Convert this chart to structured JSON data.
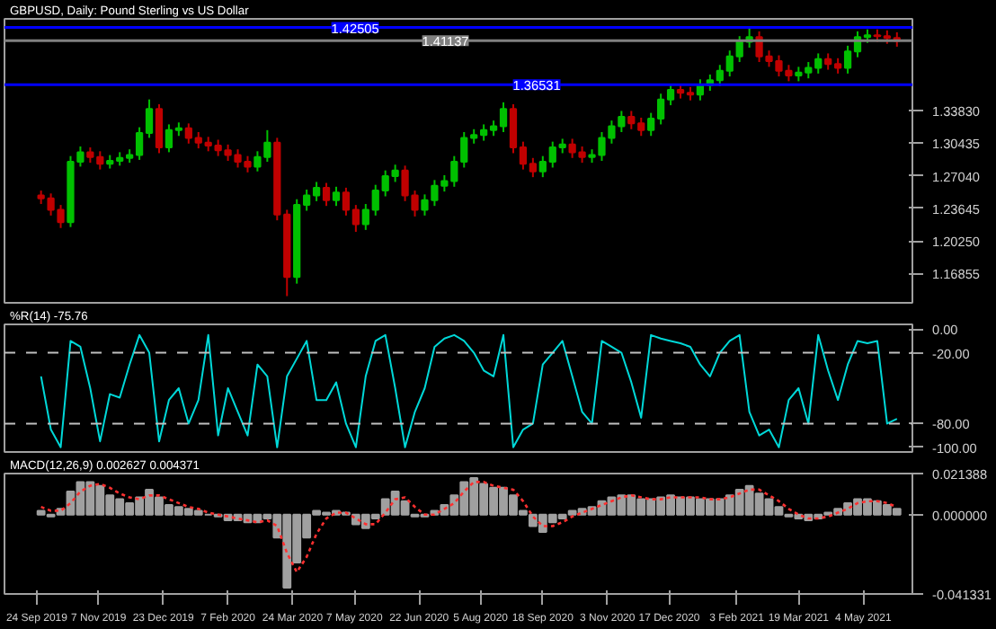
{
  "chart_data": [
    {
      "type": "candlestick",
      "title": "GBPUSD, Daily: Pound Sterling vs US Dollar",
      "x": [
        "2019-09-27",
        "2019-10-04",
        "2019-10-11",
        "2019-10-18",
        "2019-10-25",
        "2019-11-01",
        "2019-11-08",
        "2019-11-15",
        "2019-11-22",
        "2019-11-29",
        "2019-12-06",
        "2019-12-13",
        "2019-12-20",
        "2019-12-27",
        "2020-01-03",
        "2020-01-10",
        "2020-01-17",
        "2020-01-24",
        "2020-01-31",
        "2020-02-07",
        "2020-02-14",
        "2020-02-21",
        "2020-02-28",
        "2020-03-06",
        "2020-03-13",
        "2020-03-20",
        "2020-03-27",
        "2020-04-03",
        "2020-04-10",
        "2020-04-17",
        "2020-04-24",
        "2020-05-01",
        "2020-05-08",
        "2020-05-15",
        "2020-05-22",
        "2020-05-29",
        "2020-06-05",
        "2020-06-12",
        "2020-06-19",
        "2020-06-26",
        "2020-07-03",
        "2020-07-10",
        "2020-07-17",
        "2020-07-24",
        "2020-07-31",
        "2020-08-07",
        "2020-08-14",
        "2020-08-21",
        "2020-08-28",
        "2020-09-04",
        "2020-09-11",
        "2020-09-18",
        "2020-09-25",
        "2020-10-02",
        "2020-10-09",
        "2020-10-16",
        "2020-10-23",
        "2020-10-30",
        "2020-11-06",
        "2020-11-13",
        "2020-11-20",
        "2020-11-27",
        "2020-12-04",
        "2020-12-11",
        "2020-12-18",
        "2020-12-25",
        "2021-01-01",
        "2021-01-08",
        "2021-01-15",
        "2021-01-22",
        "2021-01-29",
        "2021-02-05",
        "2021-02-12",
        "2021-02-19",
        "2021-02-26",
        "2021-03-05",
        "2021-03-12",
        "2021-03-19",
        "2021-03-26",
        "2021-04-02",
        "2021-04-09",
        "2021-04-16",
        "2021-04-23",
        "2021-04-30",
        "2021-05-07",
        "2021-05-14",
        "2021-05-21",
        "2021-05-28"
      ],
      "ohlc": [
        [
          1.25,
          1.255,
          1.241,
          1.247
        ],
        [
          1.247,
          1.252,
          1.229,
          1.235
        ],
        [
          1.235,
          1.24,
          1.216,
          1.222
        ],
        [
          1.222,
          1.291,
          1.217,
          1.285
        ],
        [
          1.285,
          1.301,
          1.28,
          1.295
        ],
        [
          1.295,
          1.3,
          1.284,
          1.29
        ],
        [
          1.29,
          1.296,
          1.277,
          1.283
        ],
        [
          1.283,
          1.292,
          1.278,
          1.286
        ],
        [
          1.286,
          1.295,
          1.281,
          1.289
        ],
        [
          1.289,
          1.298,
          1.284,
          1.292
        ],
        [
          1.292,
          1.321,
          1.287,
          1.315
        ],
        [
          1.315,
          1.35,
          1.31,
          1.34
        ],
        [
          1.34,
          1.345,
          1.294,
          1.3
        ],
        [
          1.3,
          1.324,
          1.295,
          1.318
        ],
        [
          1.318,
          1.326,
          1.312,
          1.32
        ],
        [
          1.32,
          1.325,
          1.304,
          1.31
        ],
        [
          1.31,
          1.316,
          1.299,
          1.305
        ],
        [
          1.305,
          1.311,
          1.296,
          1.302
        ],
        [
          1.302,
          1.308,
          1.291,
          1.297
        ],
        [
          1.297,
          1.303,
          1.286,
          1.292
        ],
        [
          1.292,
          1.298,
          1.279,
          1.285
        ],
        [
          1.285,
          1.291,
          1.274,
          1.28
        ],
        [
          1.28,
          1.296,
          1.275,
          1.29
        ],
        [
          1.29,
          1.318,
          1.285,
          1.305
        ],
        [
          1.305,
          1.31,
          1.224,
          1.23
        ],
        [
          1.23,
          1.235,
          1.145,
          1.165
        ],
        [
          1.165,
          1.246,
          1.158,
          1.24
        ],
        [
          1.24,
          1.256,
          1.234,
          1.25
        ],
        [
          1.25,
          1.264,
          1.244,
          1.258
        ],
        [
          1.258,
          1.263,
          1.239,
          1.245
        ],
        [
          1.245,
          1.259,
          1.239,
          1.253
        ],
        [
          1.253,
          1.258,
          1.229,
          1.235
        ],
        [
          1.235,
          1.24,
          1.212,
          1.22
        ],
        [
          1.22,
          1.241,
          1.214,
          1.235
        ],
        [
          1.235,
          1.261,
          1.229,
          1.255
        ],
        [
          1.255,
          1.276,
          1.249,
          1.27
        ],
        [
          1.27,
          1.282,
          1.264,
          1.276
        ],
        [
          1.276,
          1.281,
          1.244,
          1.25
        ],
        [
          1.25,
          1.255,
          1.228,
          1.235
        ],
        [
          1.235,
          1.251,
          1.229,
          1.245
        ],
        [
          1.245,
          1.266,
          1.239,
          1.26
        ],
        [
          1.26,
          1.271,
          1.254,
          1.265
        ],
        [
          1.265,
          1.291,
          1.259,
          1.285
        ],
        [
          1.285,
          1.316,
          1.279,
          1.31
        ],
        [
          1.31,
          1.319,
          1.304,
          1.313
        ],
        [
          1.313,
          1.324,
          1.307,
          1.318
        ],
        [
          1.318,
          1.328,
          1.312,
          1.322
        ],
        [
          1.322,
          1.347,
          1.316,
          1.34
        ],
        [
          1.34,
          1.345,
          1.294,
          1.3
        ],
        [
          1.3,
          1.306,
          1.277,
          1.283
        ],
        [
          1.283,
          1.289,
          1.269,
          1.275
        ],
        [
          1.275,
          1.291,
          1.269,
          1.285
        ],
        [
          1.285,
          1.306,
          1.279,
          1.3
        ],
        [
          1.3,
          1.309,
          1.294,
          1.303
        ],
        [
          1.303,
          1.309,
          1.289,
          1.295
        ],
        [
          1.295,
          1.301,
          1.284,
          1.29
        ],
        [
          1.29,
          1.298,
          1.284,
          1.292
        ],
        [
          1.292,
          1.316,
          1.286,
          1.31
        ],
        [
          1.31,
          1.328,
          1.304,
          1.322
        ],
        [
          1.322,
          1.338,
          1.316,
          1.332
        ],
        [
          1.332,
          1.338,
          1.319,
          1.325
        ],
        [
          1.325,
          1.331,
          1.312,
          1.318
        ],
        [
          1.318,
          1.336,
          1.312,
          1.33
        ],
        [
          1.33,
          1.356,
          1.324,
          1.35
        ],
        [
          1.35,
          1.366,
          1.344,
          1.36
        ],
        [
          1.36,
          1.366,
          1.351,
          1.357
        ],
        [
          1.357,
          1.363,
          1.349,
          1.355
        ],
        [
          1.355,
          1.371,
          1.349,
          1.365
        ],
        [
          1.365,
          1.376,
          1.359,
          1.37
        ],
        [
          1.37,
          1.386,
          1.364,
          1.38
        ],
        [
          1.38,
          1.401,
          1.374,
          1.395
        ],
        [
          1.395,
          1.416,
          1.389,
          1.41
        ],
        [
          1.41,
          1.424,
          1.404,
          1.415
        ],
        [
          1.415,
          1.421,
          1.389,
          1.395
        ],
        [
          1.395,
          1.401,
          1.384,
          1.39
        ],
        [
          1.39,
          1.396,
          1.374,
          1.38
        ],
        [
          1.38,
          1.386,
          1.369,
          1.375
        ],
        [
          1.375,
          1.384,
          1.369,
          1.378
        ],
        [
          1.378,
          1.389,
          1.372,
          1.383
        ],
        [
          1.383,
          1.398,
          1.377,
          1.392
        ],
        [
          1.392,
          1.398,
          1.381,
          1.387
        ],
        [
          1.387,
          1.393,
          1.377,
          1.383
        ],
        [
          1.383,
          1.406,
          1.377,
          1.4
        ],
        [
          1.4,
          1.421,
          1.394,
          1.415
        ],
        [
          1.415,
          1.423,
          1.409,
          1.417
        ],
        [
          1.417,
          1.423,
          1.41,
          1.416
        ],
        [
          1.416,
          1.422,
          1.408,
          1.414
        ],
        [
          1.414,
          1.42,
          1.405,
          1.411
        ]
      ],
      "xlim": [
        "2019-09-01",
        "2021-06-08"
      ],
      "ylim": [
        1.138,
        1.434
      ],
      "yticks": [
        {
          "value": 1.16855,
          "label": "1.16855"
        },
        {
          "value": 1.2025,
          "label": "1.20250"
        },
        {
          "value": 1.23645,
          "label": "1.23645"
        },
        {
          "value": 1.2704,
          "label": "1.27040"
        },
        {
          "value": 1.30435,
          "label": "1.30435"
        },
        {
          "value": 1.3383,
          "label": "1.33830"
        }
      ],
      "ref_lines": [
        {
          "axis": "y",
          "value": 1.42505,
          "label": "1.42505",
          "color": "#0000ff"
        },
        {
          "axis": "y",
          "value": 1.41137,
          "label": "1.41137",
          "color": "#808080"
        },
        {
          "axis": "y",
          "value": 1.36531,
          "label": "1.36531",
          "color": "#0000ff"
        }
      ],
      "tick_labels": "y"
    },
    {
      "type": "line",
      "title": "%R(14) -75.76",
      "x": [
        "2019-09-27",
        "2019-10-04",
        "2019-10-11",
        "2019-10-18",
        "2019-10-25",
        "2019-11-01",
        "2019-11-08",
        "2019-11-15",
        "2019-11-22",
        "2019-11-29",
        "2019-12-06",
        "2019-12-13",
        "2019-12-20",
        "2019-12-27",
        "2020-01-03",
        "2020-01-10",
        "2020-01-17",
        "2020-01-24",
        "2020-01-31",
        "2020-02-07",
        "2020-02-14",
        "2020-02-21",
        "2020-02-28",
        "2020-03-06",
        "2020-03-13",
        "2020-03-20",
        "2020-03-27",
        "2020-04-03",
        "2020-04-10",
        "2020-04-17",
        "2020-04-24",
        "2020-05-01",
        "2020-05-08",
        "2020-05-15",
        "2020-05-22",
        "2020-05-29",
        "2020-06-05",
        "2020-06-12",
        "2020-06-19",
        "2020-06-26",
        "2020-07-03",
        "2020-07-10",
        "2020-07-17",
        "2020-07-24",
        "2020-07-31",
        "2020-08-07",
        "2020-08-14",
        "2020-08-21",
        "2020-08-28",
        "2020-09-04",
        "2020-09-11",
        "2020-09-18",
        "2020-09-25",
        "2020-10-02",
        "2020-10-09",
        "2020-10-16",
        "2020-10-23",
        "2020-10-30",
        "2020-11-06",
        "2020-11-13",
        "2020-11-20",
        "2020-11-27",
        "2020-12-04",
        "2020-12-11",
        "2020-12-18",
        "2020-12-25",
        "2021-01-01",
        "2021-01-08",
        "2021-01-15",
        "2021-01-22",
        "2021-01-29",
        "2021-02-05",
        "2021-02-12",
        "2021-02-19",
        "2021-02-26",
        "2021-03-05",
        "2021-03-12",
        "2021-03-19",
        "2021-03-26",
        "2021-04-02",
        "2021-04-09",
        "2021-04-16",
        "2021-04-23",
        "2021-04-30",
        "2021-05-07",
        "2021-05-14",
        "2021-05-21",
        "2021-05-28"
      ],
      "series": [
        {
          "color": "#00d8d8",
          "values": [
            -40,
            -85,
            -100,
            -10,
            -15,
            -50,
            -95,
            -55,
            -58,
            -30,
            -5,
            -20,
            -95,
            -60,
            -50,
            -80,
            -60,
            -5,
            -90,
            -50,
            -70,
            -90,
            -30,
            -40,
            -100,
            -40,
            -25,
            -10,
            -60,
            -60,
            -45,
            -80,
            -100,
            -40,
            -10,
            -5,
            -50,
            -100,
            -70,
            -50,
            -15,
            -8,
            -5,
            -10,
            -20,
            -35,
            -40,
            -5,
            -100,
            -85,
            -80,
            -30,
            -20,
            -10,
            -40,
            -70,
            -80,
            -10,
            -15,
            -20,
            -45,
            -75,
            -5,
            -8,
            -10,
            -12,
            -15,
            -30,
            -40,
            -20,
            -10,
            -5,
            -70,
            -90,
            -85,
            -100,
            -60,
            -50,
            -80,
            -5,
            -35,
            -60,
            -30,
            -10,
            -12,
            -10,
            -80,
            -76
          ]
        }
      ],
      "xlim": [
        "2019-09-01",
        "2021-06-08"
      ],
      "ylim": [
        -104,
        4
      ],
      "yticks": [
        {
          "value": 0,
          "label": "0.00"
        },
        {
          "value": -20,
          "label": "-20.00"
        },
        {
          "value": -80,
          "label": "-80.00"
        },
        {
          "value": -100,
          "label": "-100.00"
        }
      ],
      "ref_lines": [
        {
          "axis": "y",
          "value": -20,
          "color": "#c0c0c0",
          "line_style": "dashed"
        },
        {
          "axis": "y",
          "value": -80,
          "color": "#c0c0c0",
          "line_style": "dashed"
        }
      ],
      "tick_labels": "y"
    },
    {
      "type": "bar",
      "title": "MACD(12,26,9) 0.002627 0.004371",
      "x": [
        "2019-09-27",
        "2019-10-04",
        "2019-10-11",
        "2019-10-18",
        "2019-10-25",
        "2019-11-01",
        "2019-11-08",
        "2019-11-15",
        "2019-11-22",
        "2019-11-29",
        "2019-12-06",
        "2019-12-13",
        "2019-12-20",
        "2019-12-27",
        "2020-01-03",
        "2020-01-10",
        "2020-01-17",
        "2020-01-24",
        "2020-01-31",
        "2020-02-07",
        "2020-02-14",
        "2020-02-21",
        "2020-02-28",
        "2020-03-06",
        "2020-03-13",
        "2020-03-20",
        "2020-03-27",
        "2020-04-03",
        "2020-04-10",
        "2020-04-17",
        "2020-04-24",
        "2020-05-01",
        "2020-05-08",
        "2020-05-15",
        "2020-05-22",
        "2020-05-29",
        "2020-06-05",
        "2020-06-12",
        "2020-06-19",
        "2020-06-26",
        "2020-07-03",
        "2020-07-10",
        "2020-07-17",
        "2020-07-24",
        "2020-07-31",
        "2020-08-07",
        "2020-08-14",
        "2020-08-21",
        "2020-08-28",
        "2020-09-04",
        "2020-09-11",
        "2020-09-18",
        "2020-09-25",
        "2020-10-02",
        "2020-10-09",
        "2020-10-16",
        "2020-10-23",
        "2020-10-30",
        "2020-11-06",
        "2020-11-13",
        "2020-11-20",
        "2020-11-27",
        "2020-12-04",
        "2020-12-11",
        "2020-12-18",
        "2020-12-25",
        "2021-01-01",
        "2021-01-08",
        "2021-01-15",
        "2021-01-22",
        "2021-01-29",
        "2021-02-05",
        "2021-02-12",
        "2021-02-19",
        "2021-02-26",
        "2021-03-05",
        "2021-03-12",
        "2021-03-19",
        "2021-03-26",
        "2021-04-02",
        "2021-04-09",
        "2021-04-16",
        "2021-04-23",
        "2021-04-30",
        "2021-05-07",
        "2021-05-14",
        "2021-05-21",
        "2021-05-28"
      ],
      "series": [
        {
          "type": "bar",
          "color": "#a0a0a0",
          "values": [
            0.002,
            -0.001,
            0.003,
            0.012,
            0.017,
            0.017,
            0.015,
            0.01,
            0.008,
            0.006,
            0.009,
            0.013,
            0.009,
            0.005,
            0.004,
            0.003,
            0.002,
            0.0,
            -0.001,
            -0.003,
            -0.003,
            -0.004,
            -0.004,
            -0.002,
            -0.012,
            -0.038,
            -0.025,
            -0.012,
            0.002,
            0.001,
            0.002,
            0.001,
            -0.005,
            -0.007,
            -0.002,
            0.008,
            0.012,
            0.007,
            -0.001,
            -0.001,
            0.002,
            0.005,
            0.01,
            0.017,
            0.019,
            0.016,
            0.014,
            0.014,
            0.01,
            0.002,
            -0.006,
            -0.009,
            -0.004,
            -0.002,
            0.002,
            0.003,
            0.004,
            0.007,
            0.009,
            0.01,
            0.01,
            0.008,
            0.008,
            0.009,
            0.01,
            0.009,
            0.009,
            0.008,
            0.008,
            0.008,
            0.01,
            0.013,
            0.015,
            0.011,
            0.008,
            0.004,
            -0.001,
            -0.002,
            -0.003,
            -0.002,
            0.001,
            0.003,
            0.006,
            0.008,
            0.008,
            0.007,
            0.005,
            0.003
          ]
        },
        {
          "type": "line",
          "color": "#ff3030",
          "line_style": "dotted",
          "values": [
            0.004,
            0.002,
            0.002,
            0.006,
            0.012,
            0.015,
            0.016,
            0.014,
            0.011,
            0.009,
            0.008,
            0.01,
            0.01,
            0.008,
            0.006,
            0.004,
            0.003,
            0.001,
            0.0,
            -0.001,
            -0.002,
            -0.003,
            -0.004,
            -0.003,
            -0.006,
            -0.02,
            -0.03,
            -0.022,
            -0.01,
            -0.002,
            0.001,
            0.001,
            -0.002,
            -0.005,
            -0.005,
            0.001,
            0.008,
            0.009,
            0.004,
            0.0,
            0.0,
            0.003,
            0.006,
            0.012,
            0.017,
            0.017,
            0.015,
            0.014,
            0.013,
            0.007,
            -0.001,
            -0.006,
            -0.006,
            -0.004,
            -0.001,
            0.001,
            0.003,
            0.005,
            0.007,
            0.009,
            0.01,
            0.009,
            0.008,
            0.008,
            0.009,
            0.009,
            0.009,
            0.009,
            0.008,
            0.008,
            0.009,
            0.011,
            0.013,
            0.013,
            0.01,
            0.007,
            0.003,
            0.0,
            -0.002,
            -0.002,
            -0.001,
            0.001,
            0.003,
            0.006,
            0.007,
            0.007,
            0.006,
            0.004
          ]
        }
      ],
      "xlim": [
        "2019-09-01",
        "2021-06-08"
      ],
      "ylim": [
        -0.041331,
        0.021388
      ],
      "yticks": [
        {
          "value": 0.021388,
          "label": "0.021388"
        },
        {
          "value": 0,
          "label": "0.000000"
        },
        {
          "value": -0.041331,
          "label": "-0.041331"
        }
      ],
      "xticks": [
        {
          "value": "2019-09-24",
          "label": "24 Sep 2019"
        },
        {
          "value": "2019-11-07",
          "label": "7 Nov 2019"
        },
        {
          "value": "2019-12-23",
          "label": "23 Dec 2019"
        },
        {
          "value": "2020-02-07",
          "label": "7 Feb 2020"
        },
        {
          "value": "2020-03-24",
          "label": "24 Mar 2020"
        },
        {
          "value": "2020-05-07",
          "label": "7 May 2020"
        },
        {
          "value": "2020-06-22",
          "label": "22 Jun 2020"
        },
        {
          "value": "2020-08-05",
          "label": "5 Aug 2020"
        },
        {
          "value": "2020-09-18",
          "label": "18 Sep 2020"
        },
        {
          "value": "2020-11-03",
          "label": "3 Nov 2020"
        },
        {
          "value": "2020-12-17",
          "label": "17 Dec 2020"
        },
        {
          "value": "2021-02-03",
          "label": "3 Feb 2021"
        },
        {
          "value": "2021-03-19",
          "label": "19 Mar 2021"
        },
        {
          "value": "2021-05-04",
          "label": "4 May 2021"
        }
      ]
    }
  ]
}
